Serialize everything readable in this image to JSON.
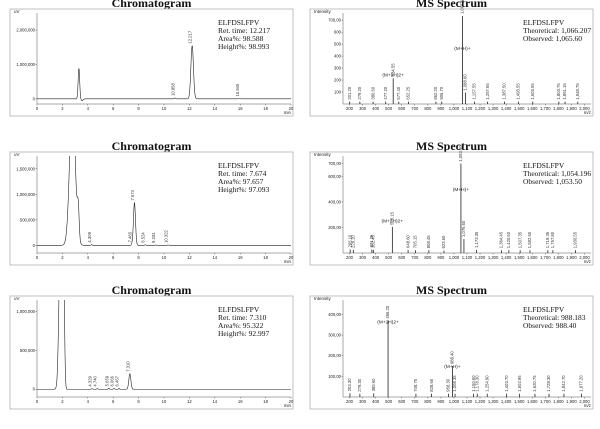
{
  "chart_data": [
    {
      "id": "chrom1",
      "type": "line",
      "title": "Chromatogram",
      "yunit": "uV",
      "xunit": "min",
      "xlim": [
        0,
        20
      ],
      "ylim": [
        -150000,
        2500000
      ],
      "xticks": [
        "0",
        "2",
        "4",
        "6",
        "8",
        "10",
        "12",
        "14",
        "16",
        "18",
        "20"
      ],
      "yticks": [
        {
          "v": 0,
          "t": "0"
        },
        {
          "v": 1000000,
          "t": "1,000,000"
        },
        {
          "v": 2000000,
          "t": "2,000,000"
        }
      ],
      "info": [
        "ELFDSLFPV",
        "Ret. time: 12.217",
        "Area%: 98.588",
        "Height%: 98.993"
      ],
      "peaks": [
        {
          "x": 3.3,
          "y": 900000,
          "w": 0.06,
          "label": ""
        },
        {
          "x": 10.858,
          "y": 25000,
          "w": 0.05,
          "label": "10.858"
        },
        {
          "x": 12.217,
          "y": 1550000,
          "w": 0.1,
          "label": "12.217"
        },
        {
          "x": 15.945,
          "y": 12000,
          "w": 0.05,
          "label": "15.945"
        }
      ]
    },
    {
      "id": "ms1",
      "type": "bar",
      "title": "MS Spectrum",
      "yunit": "Intensity",
      "xunit": "m/z",
      "xlim": [
        150,
        2050
      ],
      "ylim": [
        0,
        760
      ],
      "xticks": [
        "200",
        "300",
        "400",
        "500",
        "600",
        "700",
        "800",
        "900",
        "1,000",
        "1,100",
        "1,200",
        "1,300",
        "1,400",
        "1,500",
        "1,600",
        "1,700",
        "1,800",
        "1,900",
        "2,000"
      ],
      "yticks": [
        {
          "v": 100,
          "t": "100"
        },
        {
          "v": 200,
          "t": "200"
        },
        {
          "v": 300,
          "t": "300"
        },
        {
          "v": 400,
          "t": "400"
        },
        {
          "v": 500,
          "t": "500"
        },
        {
          "v": 600,
          "t": "600"
        },
        {
          "v": 700,
          "t": "700,00"
        }
      ],
      "info": [
        "ELFDSLFPV",
        "Theoretical: 1,066.207",
        "Observed: 1,065.60"
      ],
      "annotations": [
        {
          "text": "(M+2H)2+",
          "x": 534,
          "y": 230
        },
        {
          "text": "(M+H)+",
          "x": 1065,
          "y": 450
        }
      ],
      "peaks": [
        {
          "x": 201.2,
          "y": 20,
          "label": "201.20"
        },
        {
          "x": 279.2,
          "y": 20,
          "label": "279.20"
        },
        {
          "x": 380.6,
          "y": 20,
          "label": "380.60"
        },
        {
          "x": 477.2,
          "y": 20,
          "label": "477.20"
        },
        {
          "x": 534.55,
          "y": 215,
          "label": "534.55"
        },
        {
          "x": 577.4,
          "y": 20,
          "label": "577.40"
        },
        {
          "x": 652.25,
          "y": 20,
          "label": "652.25"
        },
        {
          "x": 862.2,
          "y": 20,
          "label": "862.20"
        },
        {
          "x": 906.7,
          "y": 20,
          "label": "906.70"
        },
        {
          "x": 1065.6,
          "y": 735,
          "label": "1,065.60"
        },
        {
          "x": 1088.6,
          "y": 95,
          "label": "1,088.60"
        },
        {
          "x": 1157.55,
          "y": 20,
          "label": "1,157.55"
        },
        {
          "x": 1257.65,
          "y": 20,
          "label": "1,257.65"
        },
        {
          "x": 1387.5,
          "y": 20,
          "label": "1,387.50"
        },
        {
          "x": 1493.55,
          "y": 20,
          "label": "1,493.55"
        },
        {
          "x": 1603.55,
          "y": 20,
          "label": "1,603.55"
        },
        {
          "x": 1803.75,
          "y": 20,
          "label": "1,803.75"
        },
        {
          "x": 1851.15,
          "y": 20,
          "label": "1,851.15"
        },
        {
          "x": 1948.75,
          "y": 20,
          "label": "1,948.75"
        }
      ]
    },
    {
      "id": "chrom2",
      "type": "line",
      "title": "Chromatogram",
      "yunit": "uV",
      "xunit": "min",
      "xlim": [
        0,
        20
      ],
      "ylim": [
        -150000,
        1750000
      ],
      "xticks": [
        "0",
        "2",
        "4",
        "6",
        "8",
        "10",
        "12",
        "14",
        "16",
        "18",
        "20"
      ],
      "yticks": [
        {
          "v": 0,
          "t": "0"
        },
        {
          "v": 500000,
          "t": "500,000"
        },
        {
          "v": 1000000,
          "t": "1,000,000"
        },
        {
          "v": 1500000,
          "t": "1,500,000"
        }
      ],
      "info": [
        "ELFDSLFPV",
        "Ret. time: 7.674",
        "Area%: 97.657",
        "Height%: 97.093"
      ],
      "peaks": [
        {
          "x": 2.8,
          "y": 3000000,
          "w": 0.22,
          "label": ""
        },
        {
          "x": 3.25,
          "y": 520000,
          "w": 0.07,
          "label": ""
        },
        {
          "x": 4.309,
          "y": 15000,
          "w": 0.04,
          "label": "4.309"
        },
        {
          "x": 7.465,
          "y": 18000,
          "w": 0.04,
          "label": "7.465"
        },
        {
          "x": 7.674,
          "y": 840000,
          "w": 0.08,
          "label": "7.674"
        },
        {
          "x": 8.524,
          "y": 12000,
          "w": 0.04,
          "label": "8.524"
        },
        {
          "x": 9.334,
          "y": 8000,
          "w": 0.04,
          "label": "9.334"
        },
        {
          "x": 10.322,
          "y": 8000,
          "w": 0.04,
          "label": "10.322"
        }
      ]
    },
    {
      "id": "ms2",
      "type": "bar",
      "title": "MS Spectrum",
      "yunit": "Intensity",
      "xunit": "m/z",
      "xlim": [
        150,
        2050
      ],
      "ylim": [
        0,
        760
      ],
      "xticks": [
        "200",
        "300",
        "400",
        "500",
        "600",
        "700",
        "800",
        "900",
        "1,000",
        "1,100",
        "1,200",
        "1,300",
        "1,400",
        "1,500",
        "1,600",
        "1,700",
        "1,800",
        "1,900",
        "2,000"
      ],
      "yticks": [
        {
          "v": 200,
          "t": "200,00"
        },
        {
          "v": 400,
          "t": "400,00"
        },
        {
          "v": 600,
          "t": "600,00"
        },
        {
          "v": 700,
          "t": "700,00"
        }
      ],
      "info": [
        "ELFDSLFPV",
        "Theoretical: 1,054.196",
        "Observed: 1,053.50"
      ],
      "annotations": [
        {
          "text": "(M+2H)2+",
          "x": 528,
          "y": 240
        },
        {
          "text": "(M+H)+",
          "x": 1053,
          "y": 485
        }
      ],
      "peaks": [
        {
          "x": 205.1,
          "y": 28,
          "label": "205.10"
        },
        {
          "x": 229.2,
          "y": 24,
          "label": "229.20"
        },
        {
          "x": 371.25,
          "y": 28,
          "label": "371.25"
        },
        {
          "x": 382.45,
          "y": 24,
          "label": "382.45"
        },
        {
          "x": 528.15,
          "y": 205,
          "label": "528.15"
        },
        {
          "x": 648.6,
          "y": 24,
          "label": "648.60"
        },
        {
          "x": 705.15,
          "y": 22,
          "label": "705.15"
        },
        {
          "x": 808.45,
          "y": 22,
          "label": "808.45"
        },
        {
          "x": 923.6,
          "y": 20,
          "label": "923.60"
        },
        {
          "x": 1053.5,
          "y": 700,
          "label": "1,053.50"
        },
        {
          "x": 1076.6,
          "y": 110,
          "label": "1,076.60"
        },
        {
          "x": 1173.35,
          "y": 24,
          "label": "1,173.35"
        },
        {
          "x": 1364.45,
          "y": 22,
          "label": "1,364.45"
        },
        {
          "x": 1420.6,
          "y": 22,
          "label": "1,420.60"
        },
        {
          "x": 1507.35,
          "y": 22,
          "label": "1,507.35"
        },
        {
          "x": 1582.65,
          "y": 22,
          "label": "1,582.65"
        },
        {
          "x": 1719.35,
          "y": 22,
          "label": "1,719.35"
        },
        {
          "x": 1757.8,
          "y": 22,
          "label": "1,757.80"
        },
        {
          "x": 1930.55,
          "y": 22,
          "label": "1,930.55"
        }
      ]
    },
    {
      "id": "chrom3",
      "type": "line",
      "title": "Chromatogram",
      "yunit": "uV",
      "xunit": "min",
      "xlim": [
        0,
        20
      ],
      "ylim": [
        -100000,
        1150000
      ],
      "xticks": [
        "0",
        "2",
        "4",
        "6",
        "8",
        "10",
        "12",
        "14",
        "16",
        "18",
        "20"
      ],
      "yticks": [
        {
          "v": 0,
          "t": "0"
        },
        {
          "v": 500000,
          "t": "500,000"
        },
        {
          "v": 1000000,
          "t": "1,000,000"
        }
      ],
      "info": [
        "ELFDSLFPV",
        "Ret. time: 7.310",
        "Area%: 95.322",
        "Height%: 92.997"
      ],
      "peaks": [
        {
          "x": 1.85,
          "y": 2000000,
          "w": 0.12,
          "label": ""
        },
        {
          "x": 2.1,
          "y": 1500000,
          "w": 0.07,
          "label": ""
        },
        {
          "x": 4.329,
          "y": 8000,
          "w": 0.04,
          "label": "4.329"
        },
        {
          "x": 4.74,
          "y": 8000,
          "w": 0.04,
          "label": "4.740"
        },
        {
          "x": 5.659,
          "y": 12000,
          "w": 0.04,
          "label": "5.659"
        },
        {
          "x": 6.066,
          "y": 10000,
          "w": 0.04,
          "label": "6.066"
        },
        {
          "x": 6.457,
          "y": 10000,
          "w": 0.04,
          "label": "6.457"
        },
        {
          "x": 7.31,
          "y": 200000,
          "w": 0.08,
          "label": "7.310"
        }
      ]
    },
    {
      "id": "ms3",
      "type": "bar",
      "title": "MS Spectrum",
      "yunit": "Intensity",
      "xunit": "m/z",
      "xlim": [
        150,
        2050
      ],
      "ylim": [
        0,
        470
      ],
      "xticks": [
        "200",
        "300",
        "400",
        "500",
        "600",
        "700",
        "800",
        "900",
        "1,000",
        "1,100",
        "1,200",
        "1,300",
        "1,400",
        "1,500",
        "1,600",
        "1,700",
        "1,800",
        "1,900",
        "2,000"
      ],
      "yticks": [
        {
          "v": 100,
          "t": "100,00"
        },
        {
          "v": 200,
          "t": "200,00"
        },
        {
          "v": 300,
          "t": "300,00"
        },
        {
          "v": 400,
          "t": "400,00"
        }
      ],
      "info": [
        "ELFDSLFPV",
        "Theoretical: 988.183",
        "Observed: 988.40"
      ],
      "annotations": [
        {
          "text": "(M+2H)2+",
          "x": 495,
          "y": 355
        },
        {
          "text": "(M+H)+",
          "x": 988,
          "y": 140
        }
      ],
      "peaks": [
        {
          "x": 203.3,
          "y": 18,
          "label": "203.30"
        },
        {
          "x": 279.3,
          "y": 16,
          "label": "279.30"
        },
        {
          "x": 385.6,
          "y": 18,
          "label": "385.60"
        },
        {
          "x": 495.2,
          "y": 370,
          "label": "495.20"
        },
        {
          "x": 708.75,
          "y": 16,
          "label": "708.75"
        },
        {
          "x": 828.65,
          "y": 16,
          "label": "828.65"
        },
        {
          "x": 958.3,
          "y": 16,
          "label": "958.30"
        },
        {
          "x": 988.4,
          "y": 150,
          "label": "988.40"
        },
        {
          "x": 1008.35,
          "y": 16,
          "label": "1,008.35"
        },
        {
          "x": 1150.6,
          "y": 16,
          "label": "1,150.60"
        },
        {
          "x": 1178.3,
          "y": 16,
          "label": "1,178.30"
        },
        {
          "x": 1254.9,
          "y": 16,
          "label": "1,254.90"
        },
        {
          "x": 1403.7,
          "y": 16,
          "label": "1,403.70"
        },
        {
          "x": 1502.95,
          "y": 16,
          "label": "1,502.95"
        },
        {
          "x": 1620.75,
          "y": 16,
          "label": "1,620.75"
        },
        {
          "x": 1728.3,
          "y": 16,
          "label": "1,728.30"
        },
        {
          "x": 1842.7,
          "y": 16,
          "label": "1,842.70"
        },
        {
          "x": 1977.2,
          "y": 16,
          "label": "1,977.20"
        }
      ]
    }
  ]
}
